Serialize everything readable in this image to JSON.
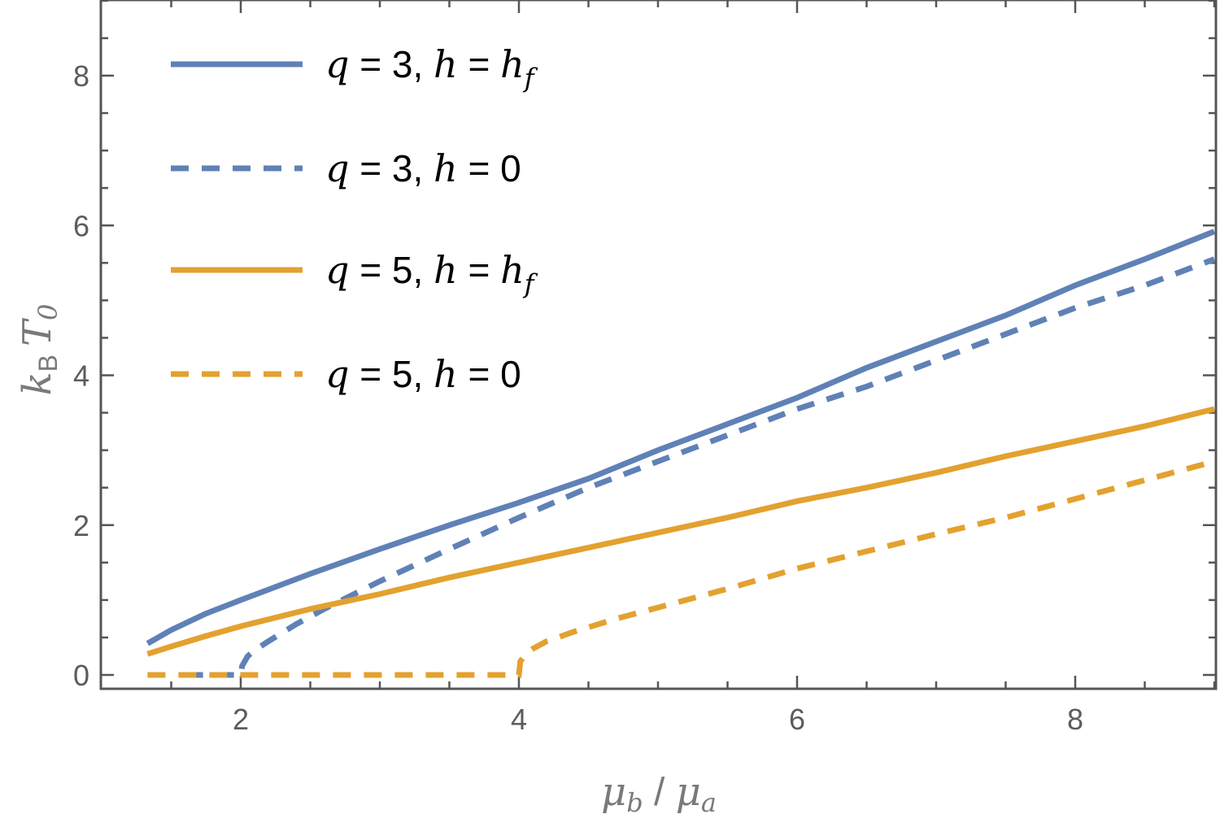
{
  "chart_data": {
    "type": "line",
    "title": "",
    "xlabel": "μb / μa",
    "ylabel": "kB T0",
    "xlim": [
      1,
      9
    ],
    "ylim": [
      -0.2,
      9
    ],
    "x_ticks": [
      2,
      4,
      6,
      8
    ],
    "y_ticks": [
      0,
      2,
      4,
      6,
      8
    ],
    "x_tick_labels": [
      "2",
      "4",
      "6",
      "8"
    ],
    "y_tick_labels": [
      "0",
      "2",
      "4",
      "6",
      "8"
    ],
    "grid": false,
    "legend_position": "top-left",
    "series": [
      {
        "name": "q = 3, h = hf",
        "color": "#5f81b6",
        "dash": "solid",
        "x": [
          1.33,
          1.5,
          1.75,
          2.0,
          2.5,
          3.0,
          3.5,
          4.0,
          4.5,
          5.0,
          5.5,
          6.0,
          6.5,
          7.0,
          7.5,
          8.0,
          8.5,
          9.0
        ],
        "y": [
          0.42,
          0.6,
          0.82,
          1.0,
          1.35,
          1.68,
          2.0,
          2.3,
          2.62,
          3.0,
          3.35,
          3.7,
          4.1,
          4.45,
          4.8,
          5.2,
          5.55,
          5.92
        ]
      },
      {
        "name": "q = 3, h = 0",
        "color": "#5f81b6",
        "dash": "dashed",
        "x": [
          1.6,
          1.8,
          2.0,
          2.01,
          2.05,
          2.1,
          2.2,
          2.4,
          2.6,
          3.0,
          3.5,
          4.0,
          4.5,
          5.0,
          5.5,
          6.0,
          6.5,
          7.0,
          7.5,
          8.0,
          8.5,
          9.0
        ],
        "y": [
          0,
          0,
          0,
          0.12,
          0.25,
          0.33,
          0.45,
          0.68,
          0.88,
          1.25,
          1.68,
          2.1,
          2.5,
          2.85,
          3.2,
          3.55,
          3.85,
          4.2,
          4.55,
          4.9,
          5.2,
          5.55
        ]
      },
      {
        "name": "q = 5, h = hf",
        "color": "#e3a12f",
        "dash": "solid",
        "x": [
          1.33,
          1.5,
          1.75,
          2.0,
          2.5,
          3.0,
          3.5,
          4.0,
          4.5,
          5.0,
          5.5,
          6.0,
          6.5,
          7.0,
          7.5,
          8.0,
          8.5,
          9.0
        ],
        "y": [
          0.28,
          0.38,
          0.52,
          0.65,
          0.88,
          1.08,
          1.3,
          1.5,
          1.7,
          1.9,
          2.1,
          2.32,
          2.5,
          2.7,
          2.92,
          3.12,
          3.32,
          3.55
        ]
      },
      {
        "name": "q = 5, h = 0",
        "color": "#e3a12f",
        "dash": "dashed",
        "x": [
          1.33,
          2.0,
          3.0,
          4.0,
          4.01,
          4.05,
          4.1,
          4.2,
          4.4,
          4.7,
          5.0,
          5.5,
          6.0,
          6.5,
          7.0,
          7.5,
          8.0,
          8.5,
          9.0
        ],
        "y": [
          0,
          0,
          0,
          0,
          0.18,
          0.28,
          0.35,
          0.45,
          0.58,
          0.75,
          0.9,
          1.15,
          1.42,
          1.65,
          1.88,
          2.1,
          2.35,
          2.6,
          2.85
        ]
      }
    ]
  },
  "legend": {
    "entries": [
      {
        "q_part": "q",
        "q_value": " = 3, ",
        "h_part": "h",
        "h_value": " = ",
        "h_sym": "h",
        "h_sub": "f"
      },
      {
        "q_part": "q",
        "q_value": " = 3, ",
        "h_part": "h",
        "h_value": " = 0",
        "h_sym": "",
        "h_sub": ""
      },
      {
        "q_part": "q",
        "q_value": " = 5, ",
        "h_part": "h",
        "h_value": " = ",
        "h_sym": "h",
        "h_sub": "f"
      },
      {
        "q_part": "q",
        "q_value": " = 5, ",
        "h_part": "h",
        "h_value": " = 0",
        "h_sym": "",
        "h_sub": ""
      }
    ]
  },
  "axis_text": {
    "x_mu": "μ",
    "x_b": "b",
    "x_slash": " / ",
    "x_a": "a",
    "y_k": "k",
    "y_B": "B",
    "y_T": "T",
    "y_0": "0"
  }
}
